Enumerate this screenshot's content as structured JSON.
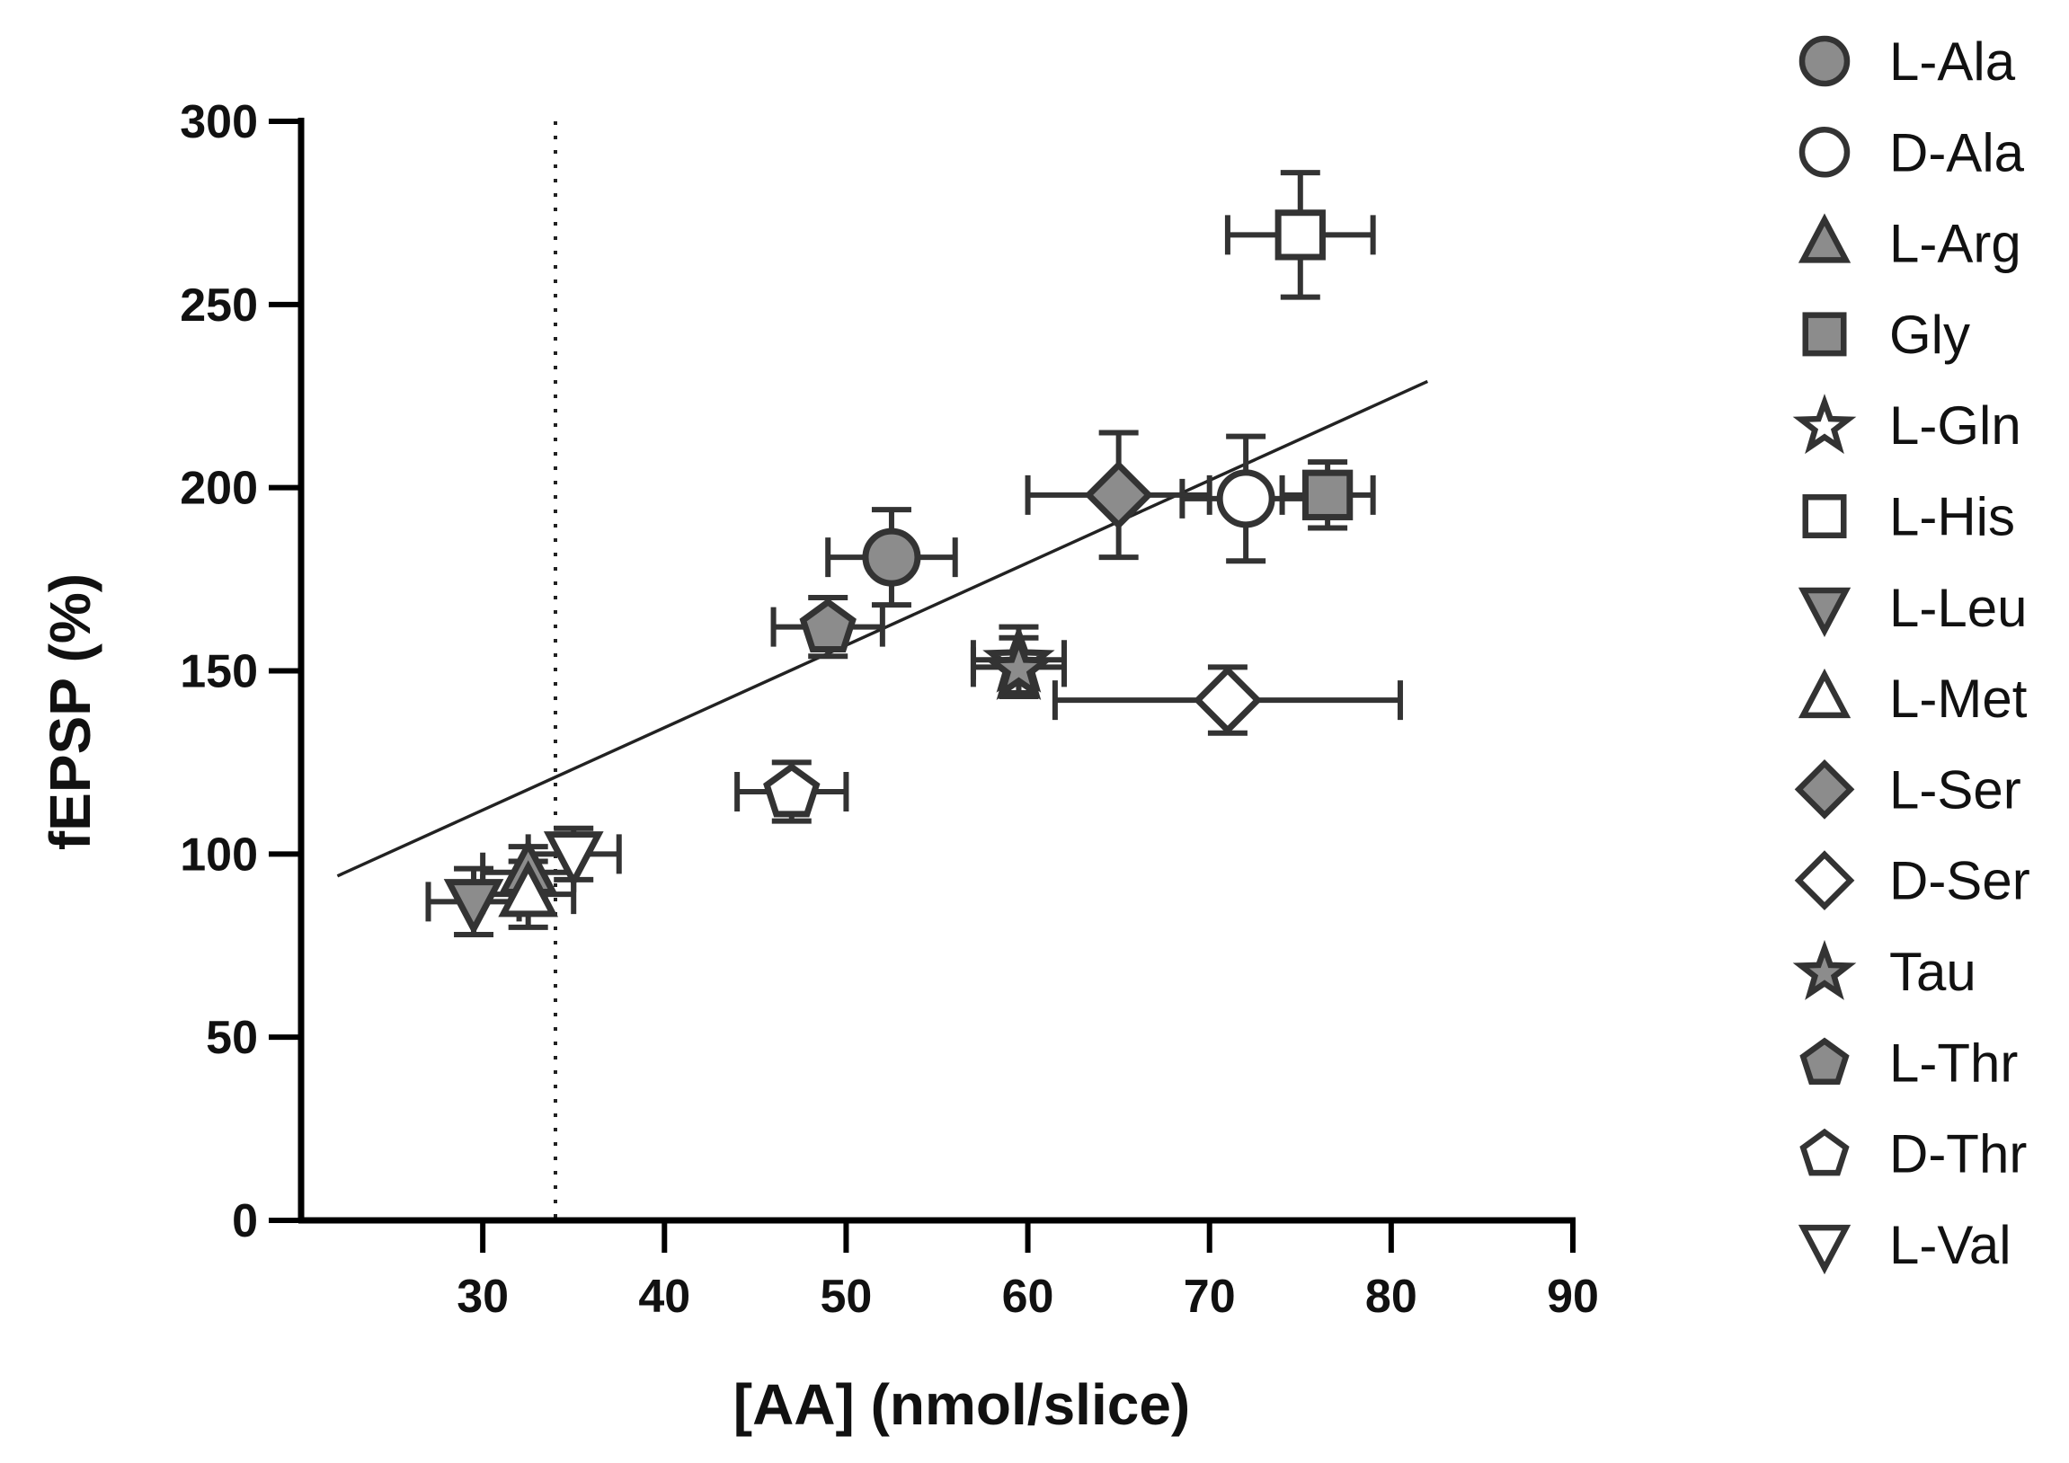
{
  "chart_data": {
    "type": "scatter",
    "title": "",
    "xlabel": "[AA] (nmol/slice)",
    "ylabel": "fEPSP (%)",
    "xlim": [
      20,
      90
    ],
    "ylim": [
      0,
      300
    ],
    "x_ticks": [
      30,
      40,
      50,
      60,
      70,
      80,
      90
    ],
    "y_ticks": [
      0,
      50,
      100,
      150,
      200,
      250,
      300
    ],
    "reference_line_x": 34,
    "regression": {
      "x": [
        22,
        82
      ],
      "y": [
        94,
        229
      ]
    },
    "grid": false,
    "legend_position": "right",
    "marker_colors": {
      "filled": "#8c8c8c",
      "open": "#ffffff",
      "edge": "#333333"
    },
    "series": [
      {
        "name": "L-Ala",
        "marker": "circle",
        "fill": "filled",
        "x": 52.5,
        "y": 181,
        "xerr": 3.5,
        "yerr": 13
      },
      {
        "name": "D-Ala",
        "marker": "circle",
        "fill": "open",
        "x": 72,
        "y": 197,
        "xerr": 3.5,
        "yerr": 17
      },
      {
        "name": "L-Arg",
        "marker": "triangle-up",
        "fill": "filled",
        "x": 32.5,
        "y": 95,
        "xerr": 2.5,
        "yerr": 7
      },
      {
        "name": "Gly",
        "marker": "square",
        "fill": "filled",
        "x": 76.5,
        "y": 198,
        "xerr": 2.5,
        "yerr": 9
      },
      {
        "name": "L-Gln",
        "marker": "star",
        "fill": "open",
        "x": 59.5,
        "y": 153,
        "xerr": 2.5,
        "yerr": 9
      },
      {
        "name": "L-His",
        "marker": "square",
        "fill": "open",
        "x": 75,
        "y": 269,
        "xerr": 4,
        "yerr": 17
      },
      {
        "name": "L-Leu",
        "marker": "triangle-down",
        "fill": "filled",
        "x": 29.5,
        "y": 87,
        "xerr": 2.5,
        "yerr": 9
      },
      {
        "name": "L-Met",
        "marker": "triangle-up",
        "fill": "open",
        "x": 32.5,
        "y": 89,
        "xerr": 2.5,
        "yerr": 9
      },
      {
        "name": "L-Ser",
        "marker": "diamond",
        "fill": "filled",
        "x": 65,
        "y": 198,
        "xerr": 5,
        "yerr": 17
      },
      {
        "name": "D-Ser",
        "marker": "diamond",
        "fill": "open",
        "x": 71,
        "y": 142,
        "xerr": 9.5,
        "yerr": 9
      },
      {
        "name": "Tau",
        "marker": "star",
        "fill": "filled",
        "x": 59.5,
        "y": 151,
        "xerr": 2.5,
        "yerr": 8
      },
      {
        "name": "L-Thr",
        "marker": "pentagon",
        "fill": "filled",
        "x": 49,
        "y": 162,
        "xerr": 3,
        "yerr": 8
      },
      {
        "name": "D-Thr",
        "marker": "pentagon",
        "fill": "open",
        "x": 47,
        "y": 117,
        "xerr": 3,
        "yerr": 8
      },
      {
        "name": "L-Val",
        "marker": "triangle-down",
        "fill": "open",
        "x": 35,
        "y": 100,
        "xerr": 2.5,
        "yerr": 7
      }
    ]
  }
}
